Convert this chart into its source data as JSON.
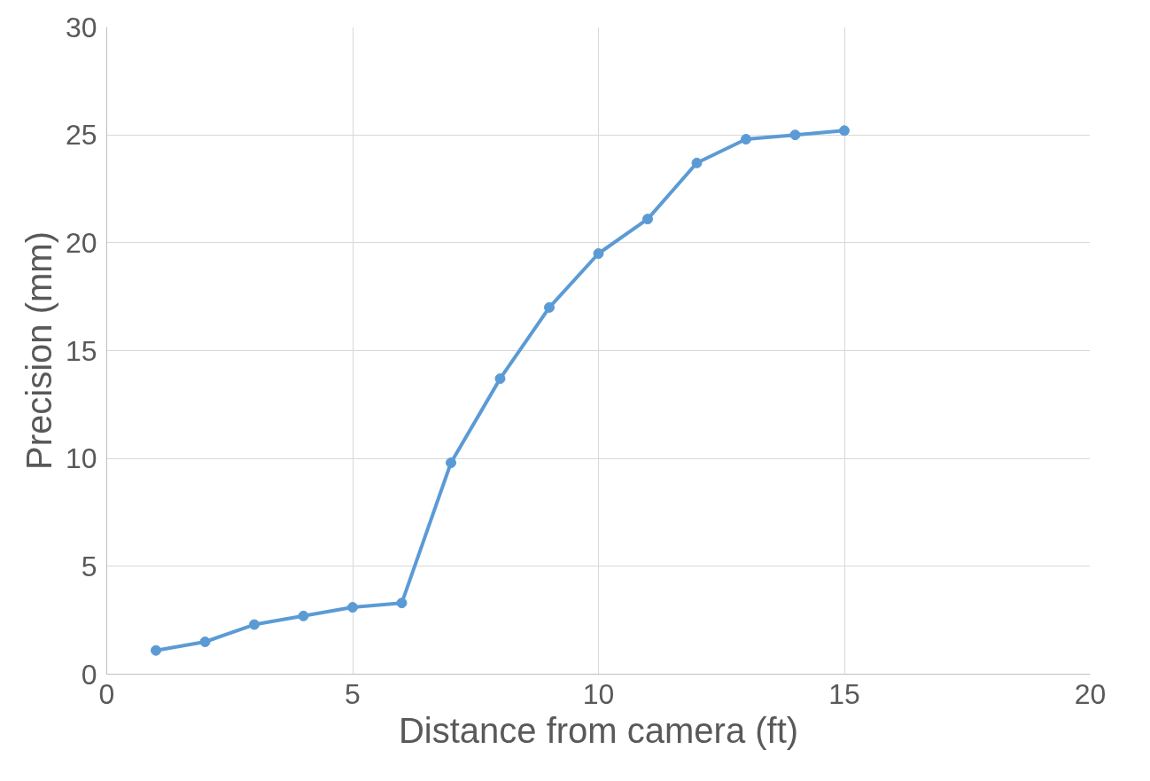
{
  "chart_data": {
    "type": "line",
    "xlabel": "Distance from camera (ft)",
    "ylabel": "Precision (mm)",
    "x": [
      1,
      2,
      3,
      4,
      5,
      6,
      7,
      8,
      9,
      10,
      11,
      12,
      13,
      14,
      15
    ],
    "series": [
      {
        "color": "#5b9bd5",
        "values": [
          1.1,
          1.5,
          2.3,
          2.7,
          3.1,
          3.3,
          9.8,
          13.7,
          17.0,
          19.5,
          21.1,
          23.7,
          24.8,
          25.0,
          25.2
        ]
      }
    ],
    "xlim": [
      0,
      20
    ],
    "xticks": [
      0,
      5,
      10,
      15,
      20
    ],
    "ylim": [
      0,
      30
    ],
    "yticks": [
      0,
      5,
      10,
      15,
      20,
      25,
      30
    ],
    "grid": true,
    "marker": "circle",
    "line_style": "solid"
  }
}
